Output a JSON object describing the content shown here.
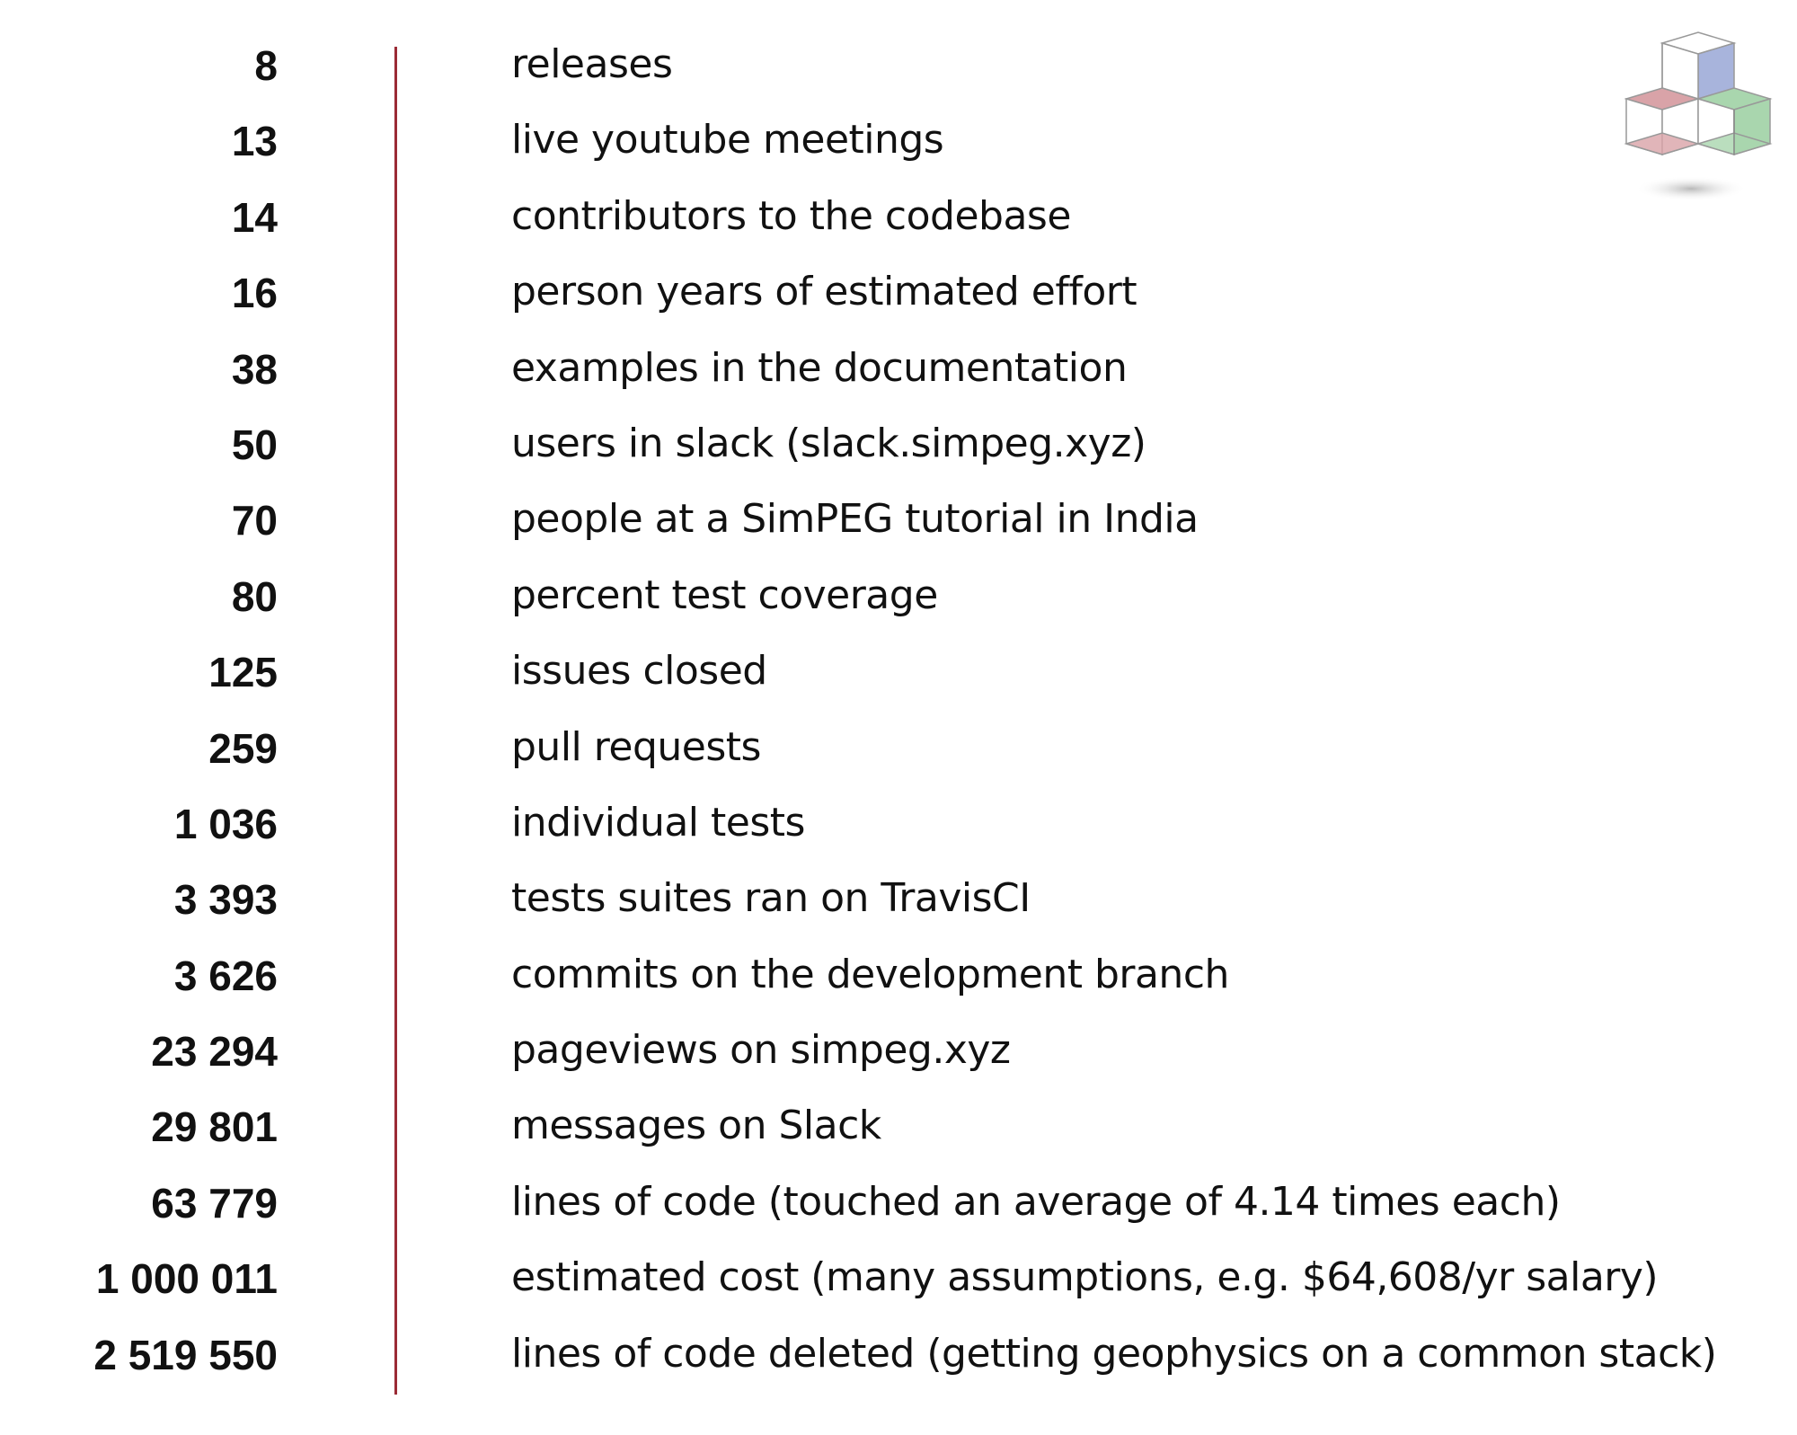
{
  "stats": [
    {
      "number": "8",
      "label": "releases"
    },
    {
      "number": "13",
      "label": "live youtube meetings"
    },
    {
      "number": "14",
      "label": "contributors to the codebase"
    },
    {
      "number": "16",
      "label": "person years of estimated effort"
    },
    {
      "number": "38",
      "label": "examples in the documentation"
    },
    {
      "number": "50",
      "label": "users in slack (slack.simpeg.xyz)"
    },
    {
      "number": "70",
      "label": "people at a SimPEG tutorial in India"
    },
    {
      "number": "80",
      "label": "percent test coverage"
    },
    {
      "number": "125",
      "label": "issues closed"
    },
    {
      "number": "259",
      "label": "pull requests"
    },
    {
      "number": "1 036",
      "label": "individual tests"
    },
    {
      "number": "3 393",
      "label": "tests suites ran on TravisCI"
    },
    {
      "number": "3 626",
      "label": "commits on the development branch"
    },
    {
      "number": "23 294",
      "label": "pageviews on simpeg.xyz"
    },
    {
      "number": "29 801",
      "label": "messages on Slack"
    },
    {
      "number": "63 779",
      "label": "lines of code (touched an average of 4.14 times each)"
    },
    {
      "number": "1 000 011",
      "label": "estimated cost (many assumptions, e.g. $64,608/yr salary)"
    },
    {
      "number": "2 519 550",
      "label": "lines of code deleted (getting geophysics on a common stack)"
    }
  ],
  "colors": {
    "divider": "#9b2b35",
    "logo_blue": "#a8b4dc",
    "logo_red": "#d9a3a8",
    "logo_green": "#a9d6ae"
  },
  "logo": {
    "icon": "simpeg-cube-logo-icon"
  }
}
